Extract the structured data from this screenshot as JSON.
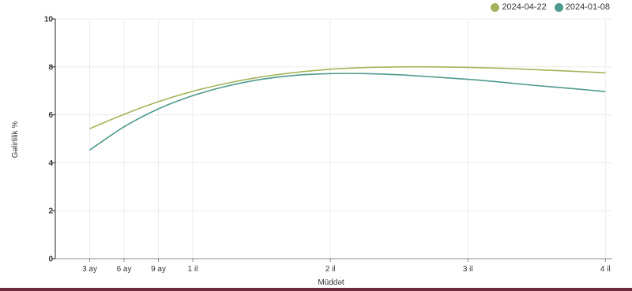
{
  "chart_data": {
    "type": "line",
    "title": "",
    "xlabel": "Müddət",
    "ylabel": "Gəlirlilik %",
    "ylim": [
      0,
      10
    ],
    "xlim": [
      0,
      4.05
    ],
    "grid": true,
    "legend_position": "top-right",
    "x_ticks": [
      {
        "value": 0.25,
        "label": "3 ay"
      },
      {
        "value": 0.5,
        "label": "6 ay"
      },
      {
        "value": 0.75,
        "label": "9 ay"
      },
      {
        "value": 1,
        "label": "1 il"
      },
      {
        "value": 2,
        "label": "2 il"
      },
      {
        "value": 3,
        "label": "3 il"
      },
      {
        "value": 4,
        "label": "4 il"
      }
    ],
    "y_ticks": [
      {
        "value": 0,
        "label": "0"
      },
      {
        "value": 2,
        "label": "2"
      },
      {
        "value": 4,
        "label": "4"
      },
      {
        "value": 6,
        "label": "6"
      },
      {
        "value": 8,
        "label": "8"
      },
      {
        "value": 10,
        "label": "10"
      }
    ],
    "series": [
      {
        "name": "2024-04-22",
        "color": "#a3b55a",
        "x": [
          0.25,
          0.5,
          0.75,
          1.0,
          1.25,
          1.5,
          1.75,
          2.0,
          2.25,
          2.5,
          2.75,
          3.0,
          3.25,
          3.5,
          3.75,
          4.0
        ],
        "y": [
          5.42,
          6.02,
          6.55,
          6.98,
          7.32,
          7.58,
          7.77,
          7.9,
          7.97,
          8.0,
          8.0,
          7.98,
          7.94,
          7.88,
          7.82,
          7.75
        ]
      },
      {
        "name": "2024-01-08",
        "color": "#4e9a8d",
        "x": [
          0.25,
          0.5,
          0.75,
          1.0,
          1.25,
          1.5,
          1.75,
          2.0,
          2.25,
          2.5,
          2.75,
          3.0,
          3.25,
          3.5,
          3.75,
          4.0
        ],
        "y": [
          4.53,
          5.5,
          6.25,
          6.8,
          7.2,
          7.48,
          7.65,
          7.72,
          7.72,
          7.67,
          7.58,
          7.48,
          7.36,
          7.22,
          7.1,
          6.97
        ]
      }
    ]
  }
}
